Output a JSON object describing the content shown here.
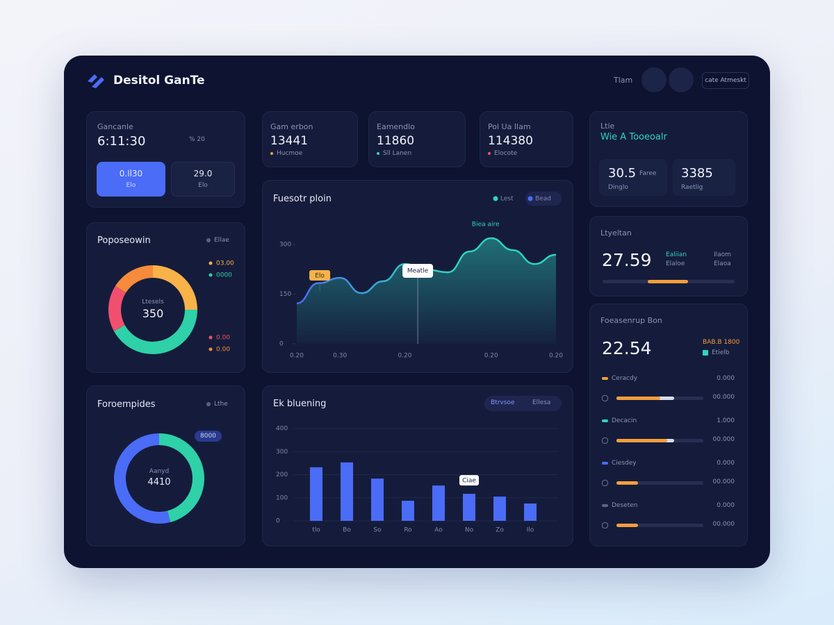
{
  "header": {
    "title": "Desitol GanTe",
    "nav": "Tlam",
    "button": "cate Atmeskt"
  },
  "summary": {
    "label": "Gancanle",
    "value": "6:11:30",
    "side": "% 20",
    "tiles": [
      {
        "value": "0.ll30",
        "label": "Elo"
      },
      {
        "value": "29.0",
        "label": "Elo"
      }
    ]
  },
  "stats": [
    {
      "label": "Gam erbon",
      "value": "13441",
      "note": "Hucmoe",
      "color": "#f59e3b"
    },
    {
      "label": "Eamendlo",
      "value": "11860",
      "note": "Sll Lanen",
      "color": "#2dd4bf"
    },
    {
      "label": "Pol Ua Ilam",
      "value": "114380",
      "note": "Elocote",
      "color": "#f0506e"
    }
  ],
  "overview": {
    "label": "Ltie",
    "title": "Wie A Tooeoalr",
    "tiles": [
      {
        "value": "30.5",
        "label": "Dinglo",
        "note": "Faree"
      },
      {
        "value": "3385",
        "label": "Raetlig"
      }
    ]
  },
  "donut_a": {
    "title": "Poposeowin",
    "legend": "Ellae",
    "center_label": "Ltesels",
    "center_value": "350",
    "slices": [
      {
        "value": 25,
        "color": "#f7b24a",
        "label": "03.00"
      },
      {
        "value": 42,
        "color": "#2fd1a8",
        "label": "0000"
      },
      {
        "value": 17,
        "color": "#f0506e",
        "label": "0.00"
      },
      {
        "value": 16,
        "color": "#f58b3b",
        "label": "0.00"
      }
    ]
  },
  "area_chart": {
    "type": "area",
    "title": "Fuesotr ploin",
    "legend": [
      {
        "name": "Lest",
        "color": "#2dd4bf"
      },
      {
        "name": "Bead",
        "color": "#4a6cf7"
      }
    ],
    "categories": [
      "0.20",
      null,
      "0.30",
      null,
      null,
      "0.20",
      null,
      null,
      null,
      "0.20",
      null,
      null,
      "0.20"
    ],
    "values": [
      122,
      183,
      199,
      153,
      189,
      241,
      224,
      216,
      279,
      319,
      283,
      241,
      269
    ],
    "ylim": [
      0,
      340
    ],
    "yticks": [
      0,
      150,
      300
    ],
    "peak_label": "Biea aire",
    "tooltips": [
      "Elo",
      "Meatle"
    ]
  },
  "level": {
    "title": "Ltyeltan",
    "value": "27.59",
    "notes": [
      "Ealiian",
      "Elaloe",
      "Ilaom",
      "Elaoa"
    ],
    "range": [
      34,
      65
    ]
  },
  "donut_b": {
    "title": "Foroempides",
    "legend": "Lthe",
    "badge": "8000",
    "center_label": "Aanyd",
    "center_value": "4410",
    "slices": [
      {
        "value": 46,
        "color": "#2fd1a8"
      },
      {
        "value": 54,
        "color": "#4a6cf7"
      }
    ]
  },
  "bar_chart": {
    "type": "bar",
    "title": "Ek bluening",
    "badges": [
      "Btrvsoe",
      "Ellesa"
    ],
    "categories": [
      "tlo",
      "Bo",
      "So",
      "Ro",
      "Ao",
      "No",
      "Zo",
      "Ilo"
    ],
    "values": [
      232,
      253,
      183,
      87,
      153,
      117,
      105,
      75
    ],
    "color": "#4a6cf7",
    "ylim": [
      0,
      400
    ],
    "yticks": [
      0,
      100,
      200,
      300,
      400
    ],
    "grid": true,
    "callout": "Ciae"
  },
  "breakdown": {
    "title": "Foeasenrup Bon",
    "value": "22.54",
    "side": "BAB.B 1800",
    "side_note": "Etielb",
    "rows": [
      {
        "name": "Ceracdy",
        "value": "0.000",
        "amount": "00.000",
        "fill": 50,
        "highlight": 66,
        "color": "#f59e3b"
      },
      {
        "name": "Decacin",
        "value": "1.000",
        "amount": "00.000",
        "fill": 58,
        "highlight": 66,
        "color": "#2dd4bf"
      },
      {
        "name": "Ciesdey",
        "value": "0.000",
        "amount": "00.000",
        "fill": 25,
        "color": "#4a6cf7"
      },
      {
        "name": "Deseten",
        "value": "0.000",
        "amount": "00.000",
        "fill": 25,
        "color": "#5a6488"
      }
    ]
  }
}
